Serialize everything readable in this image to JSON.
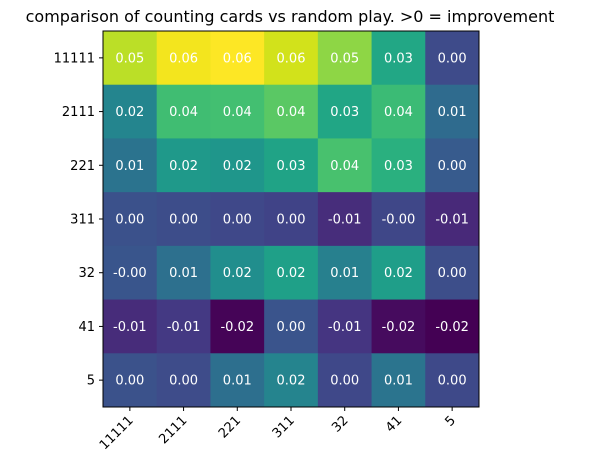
{
  "chart_data": {
    "type": "heatmap",
    "title": "comparison of counting cards vs random play. >0 = improvement",
    "xlabel": "",
    "ylabel": "",
    "x_categories": [
      "11111",
      "2111",
      "221",
      "311",
      "32",
      "41",
      "5"
    ],
    "y_categories": [
      "11111",
      "2111",
      "221",
      "311",
      "32",
      "41",
      "5"
    ],
    "values": [
      [
        0.05,
        0.06,
        0.06,
        0.06,
        0.05,
        0.03,
        0.0
      ],
      [
        0.02,
        0.04,
        0.04,
        0.04,
        0.03,
        0.04,
        0.01
      ],
      [
        0.01,
        0.02,
        0.02,
        0.03,
        0.04,
        0.03,
        0.0
      ],
      [
        0.0,
        0.0,
        0.0,
        0.0,
        -0.01,
        -0.0,
        -0.01
      ],
      [
        -0.0,
        0.01,
        0.02,
        0.02,
        0.01,
        0.02,
        0.0
      ],
      [
        -0.01,
        -0.01,
        -0.02,
        0.0,
        -0.01,
        -0.02,
        -0.02
      ],
      [
        0.0,
        0.0,
        0.01,
        0.02,
        0.0,
        0.01,
        0.0
      ]
    ],
    "cell_labels": [
      [
        "0.05",
        "0.06",
        "0.06",
        "0.06",
        "0.05",
        "0.03",
        "0.00"
      ],
      [
        "0.02",
        "0.04",
        "0.04",
        "0.04",
        "0.03",
        "0.04",
        "0.01"
      ],
      [
        "0.01",
        "0.02",
        "0.02",
        "0.03",
        "0.04",
        "0.03",
        "0.00"
      ],
      [
        "0.00",
        "0.00",
        "0.00",
        "0.00",
        "-0.01",
        "-0.00",
        "-0.01"
      ],
      [
        "-0.00",
        "0.01",
        "0.02",
        "0.02",
        "0.01",
        "0.02",
        "0.00"
      ],
      [
        "-0.01",
        "-0.01",
        "-0.02",
        "0.00",
        "-0.01",
        "-0.02",
        "-0.02"
      ],
      [
        "0.00",
        "0.00",
        "0.01",
        "0.02",
        "0.00",
        "0.01",
        "0.00"
      ]
    ],
    "cell_colors": [
      [
        "#bbdf27",
        "#f3e51e",
        "#fde725",
        "#d2e21b",
        "#8ed645",
        "#22a785",
        "#3e4b8a"
      ],
      [
        "#24858e",
        "#40bd72",
        "#43bf71",
        "#5ac864",
        "#21a685",
        "#3bbb75",
        "#2f6b8e"
      ],
      [
        "#2b738e",
        "#1f998a",
        "#1f968b",
        "#20a386",
        "#48c16e",
        "#2ab07f",
        "#375b8d"
      ],
      [
        "#3b518b",
        "#3d4d8a",
        "#3f4889",
        "#404387",
        "#472d7b",
        "#3f4788",
        "#482979"
      ],
      [
        "#39558c",
        "#2d708e",
        "#218e8d",
        "#1fa088",
        "#27808e",
        "#1f9e89",
        "#3d4e8a"
      ],
      [
        "#472c7a",
        "#443983",
        "#450457",
        "#3a548c",
        "#453581",
        "#460b5e",
        "#440154"
      ],
      [
        "#3b528b",
        "#3e4c8a",
        "#2d6f8e",
        "#25848e",
        "#3f4889",
        "#2b748e",
        "#3e4989"
      ]
    ],
    "colormap": "viridis",
    "colorbar": false,
    "grid": false,
    "legend": "none"
  }
}
